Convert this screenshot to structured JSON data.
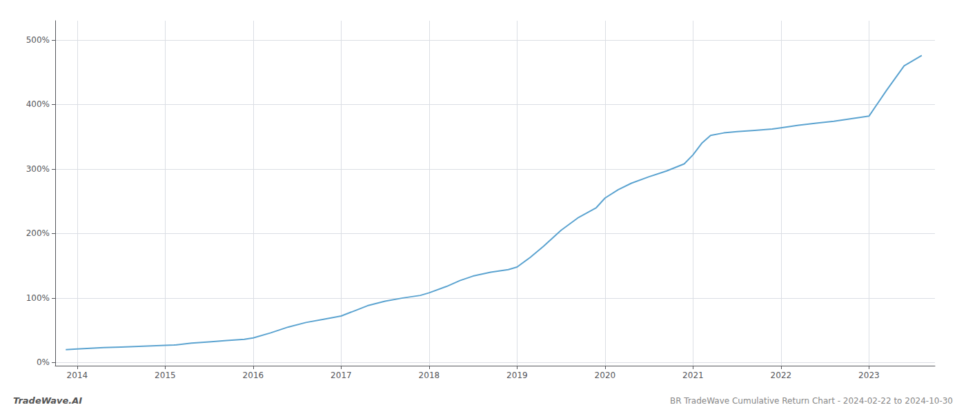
{
  "chart_data": {
    "type": "line",
    "title": "BR TradeWave Cumulative Return Chart - 2024-02-22 to 2024-10-30",
    "annotations": [
      {
        "text": "TradeWave.AI"
      }
    ],
    "color": "#5ba3d0",
    "grid": true,
    "xlim": [
      2013.75,
      2023.75
    ],
    "xticks": [
      2014,
      2015,
      2016,
      2017,
      2018,
      2019,
      2020,
      2021,
      2022,
      2023
    ],
    "ylim": [
      -5,
      530
    ],
    "yticks": [
      {
        "value": 0,
        "label": "0%"
      },
      {
        "value": 100,
        "label": "100%"
      },
      {
        "value": 200,
        "label": "200%"
      },
      {
        "value": 300,
        "label": "300%"
      },
      {
        "value": 400,
        "label": "400%"
      },
      {
        "value": 500,
        "label": "500%"
      }
    ],
    "x": [
      2013.87,
      2014.0,
      2014.15,
      2014.3,
      2014.5,
      2014.7,
      2014.9,
      2015.1,
      2015.3,
      2015.5,
      2015.7,
      2015.9,
      2016.0,
      2016.2,
      2016.4,
      2016.6,
      2016.8,
      2017.0,
      2017.15,
      2017.3,
      2017.5,
      2017.7,
      2017.9,
      2018.0,
      2018.2,
      2018.35,
      2018.5,
      2018.7,
      2018.9,
      2019.0,
      2019.15,
      2019.3,
      2019.5,
      2019.7,
      2019.9,
      2020.0,
      2020.15,
      2020.3,
      2020.5,
      2020.7,
      2020.9,
      2021.0,
      2021.1,
      2021.2,
      2021.35,
      2021.5,
      2021.7,
      2021.9,
      2022.0,
      2022.2,
      2022.4,
      2022.6,
      2022.8,
      2023.0,
      2023.2,
      2023.4,
      2023.6
    ],
    "values": [
      20,
      21,
      22,
      23,
      24,
      25,
      26,
      27,
      30,
      32,
      34,
      36,
      38,
      46,
      55,
      62,
      67,
      72,
      80,
      88,
      95,
      100,
      104,
      108,
      118,
      127,
      134,
      140,
      144,
      148,
      163,
      180,
      205,
      225,
      240,
      255,
      268,
      278,
      288,
      297,
      308,
      322,
      340,
      352,
      356,
      358,
      360,
      362,
      364,
      368,
      371,
      374,
      378,
      382,
      422,
      460,
      476
    ]
  }
}
